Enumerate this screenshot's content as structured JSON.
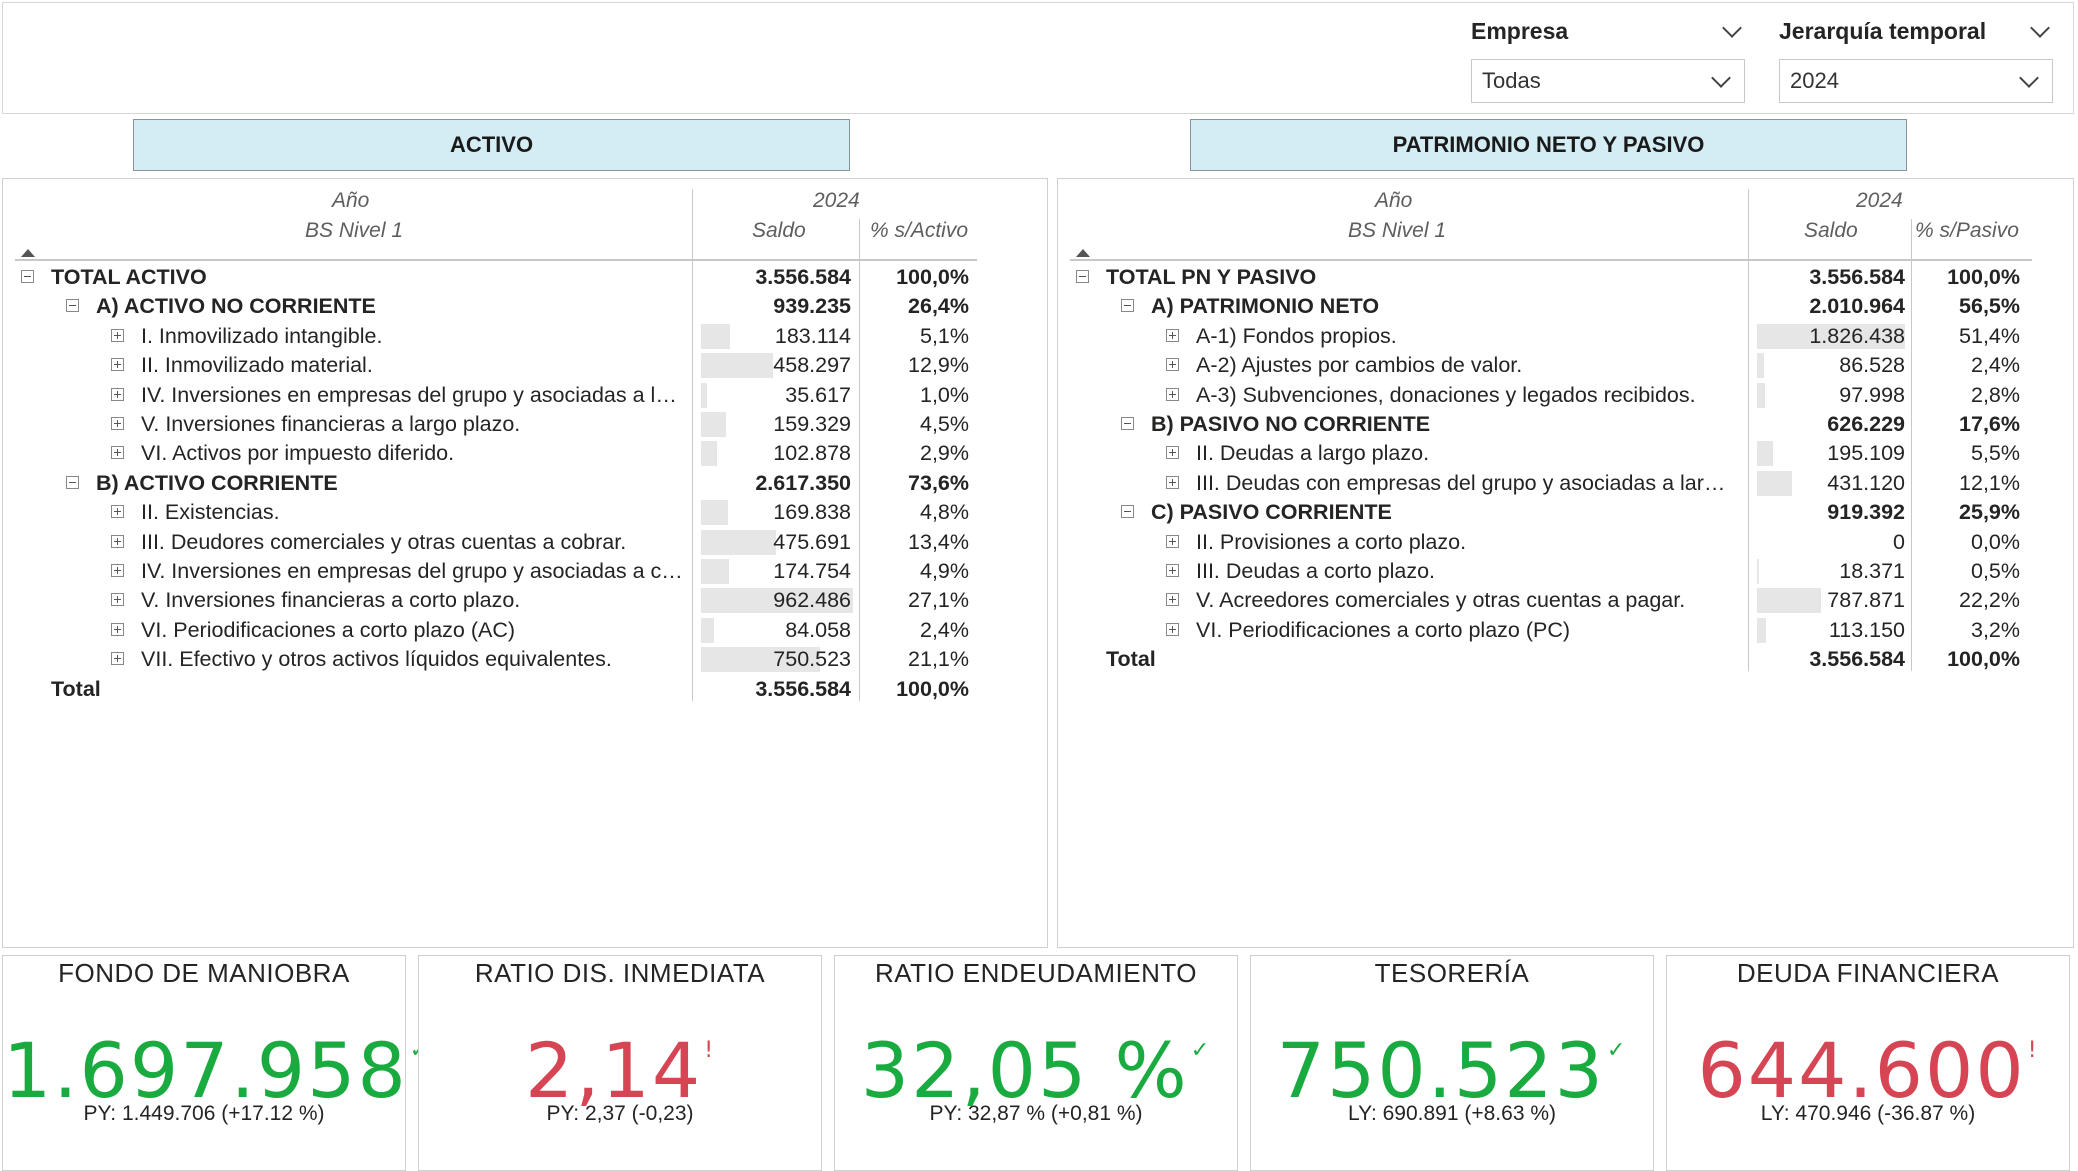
{
  "filters": {
    "empresa": {
      "label": "Empresa",
      "value": "Todas"
    },
    "jerarquia": {
      "label": "Jerarquía temporal",
      "value": "2024"
    }
  },
  "sections": {
    "activo": "ACTIVO",
    "pasivo": "PATRIMONIO NETO Y PASIVO"
  },
  "activo_matrix": {
    "header_year_label": "Año",
    "header_level_label": "BS Nivel 1",
    "year": "2024",
    "col_saldo": "Saldo",
    "col_pct": "% s/Activo",
    "rows": [
      {
        "label": "TOTAL ACTIVO",
        "saldo": "3.556.584",
        "pct": "100,0%",
        "level": 0,
        "bold": true,
        "exp": "minus",
        "bar": 0
      },
      {
        "label": "A) ACTIVO NO CORRIENTE",
        "saldo": "939.235",
        "pct": "26,4%",
        "level": 1,
        "bold": true,
        "exp": "minus",
        "bar": 0
      },
      {
        "label": "I. Inmovilizado intangible.",
        "saldo": "183.114",
        "pct": "5,1%",
        "level": 2,
        "bold": false,
        "exp": "plus",
        "bar": 0.19
      },
      {
        "label": "II. Inmovilizado material.",
        "saldo": "458.297",
        "pct": "12,9%",
        "level": 2,
        "bold": false,
        "exp": "plus",
        "bar": 0.476
      },
      {
        "label": "IV. Inversiones en empresas del grupo y asociadas a largo plazo.",
        "saldo": "35.617",
        "pct": "1,0%",
        "level": 2,
        "bold": false,
        "exp": "plus",
        "bar": 0.037
      },
      {
        "label": "V. Inversiones financieras a largo plazo.",
        "saldo": "159.329",
        "pct": "4,5%",
        "level": 2,
        "bold": false,
        "exp": "plus",
        "bar": 0.166
      },
      {
        "label": "VI. Activos por impuesto diferido.",
        "saldo": "102.878",
        "pct": "2,9%",
        "level": 2,
        "bold": false,
        "exp": "plus",
        "bar": 0.107
      },
      {
        "label": "B) ACTIVO CORRIENTE",
        "saldo": "2.617.350",
        "pct": "73,6%",
        "level": 1,
        "bold": true,
        "exp": "minus",
        "bar": 0
      },
      {
        "label": "II. Existencias.",
        "saldo": "169.838",
        "pct": "4,8%",
        "level": 2,
        "bold": false,
        "exp": "plus",
        "bar": 0.176
      },
      {
        "label": "III. Deudores comerciales y otras cuentas a cobrar.",
        "saldo": "475.691",
        "pct": "13,4%",
        "level": 2,
        "bold": false,
        "exp": "plus",
        "bar": 0.494
      },
      {
        "label": "IV. Inversiones en empresas del grupo y asociadas a corto plazo.",
        "saldo": "174.754",
        "pct": "4,9%",
        "level": 2,
        "bold": false,
        "exp": "plus",
        "bar": 0.182
      },
      {
        "label": "V. Inversiones financieras a corto plazo.",
        "saldo": "962.486",
        "pct": "27,1%",
        "level": 2,
        "bold": false,
        "exp": "plus",
        "bar": 1.0
      },
      {
        "label": "VI. Periodificaciones a corto plazo (AC)",
        "saldo": "84.058",
        "pct": "2,4%",
        "level": 2,
        "bold": false,
        "exp": "plus",
        "bar": 0.087
      },
      {
        "label": "VII. Efectivo y otros activos líquidos equivalentes.",
        "saldo": "750.523",
        "pct": "21,1%",
        "level": 2,
        "bold": false,
        "exp": "plus",
        "bar": 0.78
      },
      {
        "label": "Total",
        "saldo": "3.556.584",
        "pct": "100,0%",
        "level": 0,
        "bold": true,
        "exp": "none",
        "bar": 0
      }
    ]
  },
  "pasivo_matrix": {
    "header_year_label": "Año",
    "header_level_label": "BS Nivel 1",
    "year": "2024",
    "col_saldo": "Saldo",
    "col_pct": "% s/Pasivo",
    "rows": [
      {
        "label": "TOTAL PN Y PASIVO",
        "saldo": "3.556.584",
        "pct": "100,0%",
        "level": 0,
        "bold": true,
        "exp": "minus",
        "bar": 0
      },
      {
        "label": "A) PATRIMONIO NETO",
        "saldo": "2.010.964",
        "pct": "56,5%",
        "level": 1,
        "bold": true,
        "exp": "minus",
        "bar": 0
      },
      {
        "label": "A-1) Fondos propios.",
        "saldo": "1.826.438",
        "pct": "51,4%",
        "level": 2,
        "bold": false,
        "exp": "plus",
        "bar": 1.0
      },
      {
        "label": "A-2) Ajustes por cambios de valor.",
        "saldo": "86.528",
        "pct": "2,4%",
        "level": 2,
        "bold": false,
        "exp": "plus",
        "bar": 0.047
      },
      {
        "label": "A-3) Subvenciones, donaciones y legados recibidos.",
        "saldo": "97.998",
        "pct": "2,8%",
        "level": 2,
        "bold": false,
        "exp": "plus",
        "bar": 0.054
      },
      {
        "label": "B) PASIVO NO CORRIENTE",
        "saldo": "626.229",
        "pct": "17,6%",
        "level": 1,
        "bold": true,
        "exp": "minus",
        "bar": 0
      },
      {
        "label": "II. Deudas a largo plazo.",
        "saldo": "195.109",
        "pct": "5,5%",
        "level": 2,
        "bold": false,
        "exp": "plus",
        "bar": 0.107
      },
      {
        "label": "III. Deudas con empresas del grupo y asociadas a largo plazo.",
        "saldo": "431.120",
        "pct": "12,1%",
        "level": 2,
        "bold": false,
        "exp": "plus",
        "bar": 0.236
      },
      {
        "label": "C) PASIVO CORRIENTE",
        "saldo": "919.392",
        "pct": "25,9%",
        "level": 1,
        "bold": true,
        "exp": "minus",
        "bar": 0
      },
      {
        "label": "II. Provisiones a corto plazo.",
        "saldo": "0",
        "pct": "0,0%",
        "level": 2,
        "bold": false,
        "exp": "plus",
        "bar": 0
      },
      {
        "label": "III. Deudas a corto plazo.",
        "saldo": "18.371",
        "pct": "0,5%",
        "level": 2,
        "bold": false,
        "exp": "plus",
        "bar": 0.01
      },
      {
        "label": "V. Acreedores comerciales y otras cuentas a pagar.",
        "saldo": "787.871",
        "pct": "22,2%",
        "level": 2,
        "bold": false,
        "exp": "plus",
        "bar": 0.431
      },
      {
        "label": "VI. Periodificaciones a corto plazo (PC)",
        "saldo": "113.150",
        "pct": "3,2%",
        "level": 2,
        "bold": false,
        "exp": "plus",
        "bar": 0.062
      },
      {
        "label": "Total",
        "saldo": "3.556.584",
        "pct": "100,0%",
        "level": 0,
        "bold": true,
        "exp": "none",
        "bar": 0
      }
    ]
  },
  "kpis": [
    {
      "title": "FONDO DE MANIOBRA",
      "value": "1.697.958",
      "mark": "✓",
      "status": "good",
      "sub": "PY: 1.449.706 (+17.12 %)"
    },
    {
      "title": "RATIO DIS. INMEDIATA",
      "value": "2,14",
      "mark": "!",
      "status": "bad",
      "sub": "PY: 2,37 (-0,23)"
    },
    {
      "title": "RATIO ENDEUDAMIENTO",
      "value": "32,05 %",
      "mark": "✓",
      "status": "good",
      "sub": "PY: 32,87 % (+0,81 %)"
    },
    {
      "title": "TESORERÍA",
      "value": "750.523",
      "mark": "✓",
      "status": "good",
      "sub": "LY: 690.891 (+8.63 %)"
    },
    {
      "title": "DEUDA FINANCIERA",
      "value": "644.600",
      "mark": "!",
      "status": "bad",
      "sub": "LY: 470.946 (-36.87 %)"
    }
  ],
  "colors": {
    "good": "#1aab40",
    "bad": "#d64554",
    "bar": "#e6e6e6",
    "section_bg": "#d4edf4"
  }
}
